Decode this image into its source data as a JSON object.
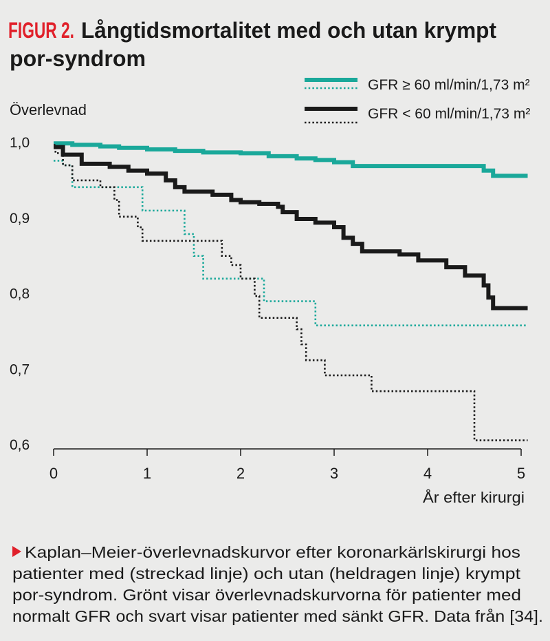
{
  "chart_data": {
    "type": "step",
    "figure_label": "FIGUR 2.",
    "title": [
      "Långtidsmortalitet med och utan krympt",
      "por-syndrom"
    ],
    "y_label": "Överlevnad",
    "x_label": "År efter kirurgi",
    "xlim": [
      0,
      5
    ],
    "xticks": [
      0,
      1,
      2,
      3,
      4,
      5
    ],
    "ylim": [
      0.6,
      1.0
    ],
    "yticks": [
      {
        "value": 1.0,
        "label": "1,0"
      },
      {
        "value": 0.9,
        "label": "0,9"
      },
      {
        "value": 0.8,
        "label": "0,8"
      },
      {
        "value": 0.7,
        "label": "0,7"
      },
      {
        "value": 0.6,
        "label": "0,6"
      }
    ],
    "legend": [
      {
        "label": "GFR ≥ 60 ml/min/1,73 m²",
        "color": "#1aa89a"
      },
      {
        "label": "GFR < 60 ml/min/1,73 m²",
        "color": "#1a1a1a"
      }
    ],
    "series": [
      {
        "color": "#1aa89a",
        "style": "solid",
        "x": [
          0,
          0.2,
          0.5,
          0.7,
          1.0,
          1.3,
          1.6,
          2.0,
          2.3,
          2.6,
          2.8,
          3.0,
          3.2,
          4.6,
          4.7,
          5.07
        ],
        "values": [
          0.998,
          0.996,
          0.994,
          0.992,
          0.99,
          0.988,
          0.986,
          0.985,
          0.981,
          0.978,
          0.976,
          0.973,
          0.968,
          0.962,
          0.955,
          0.955
        ]
      },
      {
        "color": "#1aa89a",
        "style": "dotted",
        "x": [
          0,
          0.1,
          0.2,
          0.95,
          1.4,
          1.5,
          1.6,
          2.25,
          2.8,
          5.07
        ],
        "values": [
          0.975,
          0.969,
          0.94,
          0.909,
          0.878,
          0.849,
          0.819,
          0.789,
          0.757,
          0.757
        ]
      },
      {
        "color": "#1a1a1a",
        "style": "solid",
        "x": [
          0,
          0.1,
          0.3,
          0.6,
          0.8,
          1.0,
          1.2,
          1.3,
          1.4,
          1.7,
          1.9,
          2.0,
          2.2,
          2.4,
          2.45,
          2.6,
          2.8,
          3.0,
          3.1,
          3.2,
          3.3,
          3.7,
          3.9,
          4.2,
          4.4,
          4.6,
          4.65,
          4.7,
          5.07
        ],
        "values": [
          0.993,
          0.983,
          0.971,
          0.967,
          0.962,
          0.958,
          0.949,
          0.94,
          0.934,
          0.93,
          0.923,
          0.92,
          0.918,
          0.914,
          0.907,
          0.898,
          0.893,
          0.887,
          0.873,
          0.865,
          0.855,
          0.851,
          0.843,
          0.834,
          0.823,
          0.81,
          0.794,
          0.78,
          0.78
        ]
      },
      {
        "color": "#1a1a1a",
        "style": "dotted",
        "x": [
          0,
          0.02,
          0.1,
          0.2,
          0.5,
          0.65,
          0.7,
          0.9,
          0.95,
          1.8,
          1.9,
          2.0,
          2.15,
          2.2,
          2.6,
          2.65,
          2.7,
          2.9,
          3.4,
          4.5,
          5.07
        ],
        "values": [
          0.996,
          0.985,
          0.969,
          0.949,
          0.94,
          0.923,
          0.901,
          0.887,
          0.869,
          0.849,
          0.837,
          0.819,
          0.796,
          0.767,
          0.752,
          0.732,
          0.711,
          0.691,
          0.67,
          0.605,
          0.605
        ]
      }
    ],
    "caption": [
      "Kaplan–Meier-överlevnadskurvor efter koronarkärlskirurgi hos",
      "patienter med (streckad linje) och utan (heldragen linje) krympt",
      "por-syndrom. Grönt visar överlevnadskurvorna för patienter med",
      "normalt GFR och svart visar patienter med sänkt GFR. Data från [34]."
    ]
  }
}
